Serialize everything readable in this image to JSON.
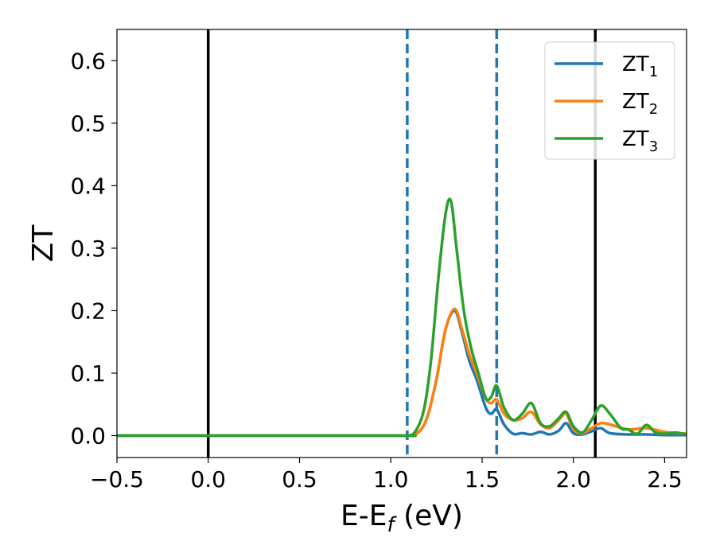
{
  "chart_data": {
    "type": "line",
    "xlabel": {
      "base": "E-E",
      "sub": "f",
      "suffix": " (eV)"
    },
    "ylabel": "ZT",
    "xlim": [
      -0.5,
      2.62
    ],
    "ylim": [
      -0.035,
      0.65
    ],
    "xticks": [
      -0.5,
      0.0,
      0.5,
      1.0,
      1.5,
      2.0,
      2.5
    ],
    "xtick_labels": [
      "−0.5",
      "0.0",
      "0.5",
      "1.0",
      "1.5",
      "2.0",
      "2.5"
    ],
    "yticks": [
      0.0,
      0.1,
      0.2,
      0.3,
      0.4,
      0.5,
      0.6
    ],
    "ytick_labels": [
      "0.0",
      "0.1",
      "0.2",
      "0.3",
      "0.4",
      "0.5",
      "0.6"
    ],
    "grid": false,
    "legend_position": "upper-right",
    "vlines": [
      {
        "x": 0.0,
        "color": "#000000",
        "style": "solid"
      },
      {
        "x": 2.12,
        "color": "#000000",
        "style": "solid"
      },
      {
        "x": 1.09,
        "color": "#1f77b4",
        "style": "dashed"
      },
      {
        "x": 1.58,
        "color": "#1f77b4",
        "style": "dashed"
      }
    ],
    "series": [
      {
        "name": {
          "base": "ZT",
          "sub": "1"
        },
        "color": "#1f77b4",
        "x": [
          -0.5,
          1.0,
          1.08,
          1.15,
          1.2,
          1.25,
          1.3,
          1.35,
          1.39,
          1.43,
          1.47,
          1.52,
          1.55,
          1.58,
          1.62,
          1.67,
          1.72,
          1.77,
          1.82,
          1.87,
          1.92,
          1.96,
          2.0,
          2.05,
          2.1,
          2.15,
          2.2,
          2.3,
          2.4,
          2.5,
          2.62
        ],
        "y": [
          0.0,
          0.0,
          0.0,
          0.005,
          0.03,
          0.09,
          0.17,
          0.2,
          0.165,
          0.12,
          0.09,
          0.045,
          0.035,
          0.042,
          0.018,
          0.003,
          0.004,
          0.002,
          0.006,
          0.002,
          0.008,
          0.02,
          0.004,
          0.002,
          0.007,
          0.012,
          0.004,
          0.002,
          0.002,
          0.001,
          0.001
        ]
      },
      {
        "name": {
          "base": "ZT",
          "sub": "2"
        },
        "color": "#ff7f0e",
        "x": [
          -0.5,
          1.0,
          1.08,
          1.15,
          1.2,
          1.25,
          1.3,
          1.35,
          1.39,
          1.43,
          1.47,
          1.52,
          1.55,
          1.58,
          1.62,
          1.67,
          1.72,
          1.77,
          1.82,
          1.87,
          1.92,
          1.96,
          2.0,
          2.05,
          2.1,
          2.15,
          2.2,
          2.3,
          2.4,
          2.5,
          2.62
        ],
        "y": [
          0.0,
          0.0,
          0.0,
          0.005,
          0.03,
          0.09,
          0.17,
          0.203,
          0.17,
          0.13,
          0.1,
          0.06,
          0.052,
          0.058,
          0.035,
          0.025,
          0.028,
          0.038,
          0.018,
          0.012,
          0.025,
          0.035,
          0.01,
          0.004,
          0.012,
          0.02,
          0.018,
          0.01,
          0.012,
          0.006,
          0.003
        ]
      },
      {
        "name": {
          "base": "ZT",
          "sub": "3"
        },
        "color": "#2ca02c",
        "x": [
          -0.5,
          1.0,
          1.08,
          1.13,
          1.18,
          1.22,
          1.26,
          1.3,
          1.33,
          1.36,
          1.4,
          1.44,
          1.48,
          1.52,
          1.55,
          1.58,
          1.62,
          1.67,
          1.72,
          1.77,
          1.82,
          1.87,
          1.92,
          1.96,
          2.0,
          2.05,
          2.1,
          2.15,
          2.2,
          2.26,
          2.3,
          2.35,
          2.4,
          2.45,
          2.5,
          2.56,
          2.62
        ],
        "y": [
          0.0,
          0.0,
          0.0,
          0.005,
          0.04,
          0.12,
          0.25,
          0.355,
          0.375,
          0.3,
          0.2,
          0.14,
          0.1,
          0.06,
          0.062,
          0.08,
          0.045,
          0.025,
          0.035,
          0.052,
          0.02,
          0.015,
          0.028,
          0.038,
          0.015,
          0.005,
          0.025,
          0.048,
          0.035,
          0.012,
          0.01,
          0.003,
          0.017,
          0.005,
          0.003,
          0.005,
          0.002
        ]
      }
    ]
  }
}
